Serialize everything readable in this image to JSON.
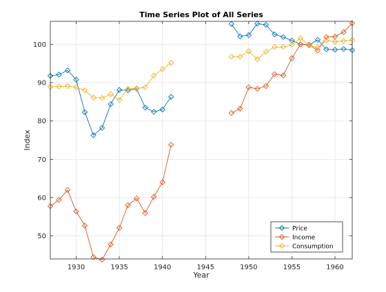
{
  "chart_data": {
    "type": "line",
    "title": "Time Series Plot of All Series",
    "xlabel": "Year",
    "ylabel": "Index",
    "xlim": [
      1927,
      1962
    ],
    "ylim": [
      44,
      106
    ],
    "xticks": [
      1930,
      1935,
      1940,
      1945,
      1950,
      1955,
      1960
    ],
    "yticks": [
      50,
      60,
      70,
      80,
      90,
      100
    ],
    "grid": true,
    "legend_position": "bottom-right",
    "colors": {
      "axis": "#262626",
      "grid": "#dfdfdf",
      "Price": "#0072BD",
      "Income": "#D95319",
      "Consumption": "#EDB120"
    },
    "series": [
      {
        "name": "Price",
        "x": [
          1927,
          1928,
          1929,
          1930,
          1931,
          1932,
          1933,
          1934,
          1935,
          1936,
          1937,
          1938,
          1939,
          1940,
          1941,
          1948,
          1949,
          1950,
          1951,
          1952,
          1953,
          1954,
          1955,
          1956,
          1957,
          1958,
          1959,
          1960,
          1961,
          1962
        ],
        "values": [
          91.8,
          92.1,
          93.2,
          90.8,
          82.3,
          76.3,
          78.2,
          84.4,
          88.1,
          88.0,
          88.4,
          83.5,
          82.4,
          83.0,
          86.3,
          105.3,
          102.1,
          102.4,
          105.4,
          105.1,
          102.6,
          101.9,
          101.0,
          100.0,
          99.8,
          101.2,
          98.7,
          98.6,
          98.8,
          98.5
        ]
      },
      {
        "name": "Income",
        "x": [
          1927,
          1928,
          1929,
          1930,
          1931,
          1932,
          1933,
          1934,
          1935,
          1936,
          1937,
          1938,
          1939,
          1940,
          1941,
          1948,
          1949,
          1950,
          1951,
          1952,
          1953,
          1954,
          1955,
          1956,
          1957,
          1958,
          1959,
          1960,
          1961,
          1962
        ],
        "values": [
          57.8,
          59.4,
          62.0,
          56.4,
          52.7,
          44.5,
          43.8,
          47.8,
          52.1,
          58.0,
          59.8,
          56.0,
          60.2,
          64.0,
          73.8,
          82.1,
          83.2,
          88.8,
          88.4,
          89.1,
          92.2,
          91.9,
          96.4,
          100.0,
          99.9,
          98.4,
          101.9,
          102.0,
          103.2,
          105.5
        ]
      },
      {
        "name": "Consumption",
        "x": [
          1927,
          1928,
          1929,
          1930,
          1931,
          1932,
          1933,
          1934,
          1935,
          1936,
          1937,
          1938,
          1939,
          1940,
          1941,
          1948,
          1949,
          1950,
          1951,
          1952,
          1953,
          1954,
          1955,
          1956,
          1957,
          1958,
          1959,
          1960,
          1961,
          1962
        ],
        "values": [
          88.9,
          89.0,
          89.1,
          88.8,
          88.0,
          86.1,
          86.0,
          87.0,
          85.5,
          88.4,
          88.5,
          88.8,
          91.8,
          93.5,
          95.2,
          96.8,
          96.8,
          98.2,
          96.1,
          98.1,
          99.3,
          99.3,
          99.9,
          101.6,
          99.7,
          99.2,
          101.0,
          100.7,
          100.9,
          101.1
        ]
      }
    ]
  }
}
